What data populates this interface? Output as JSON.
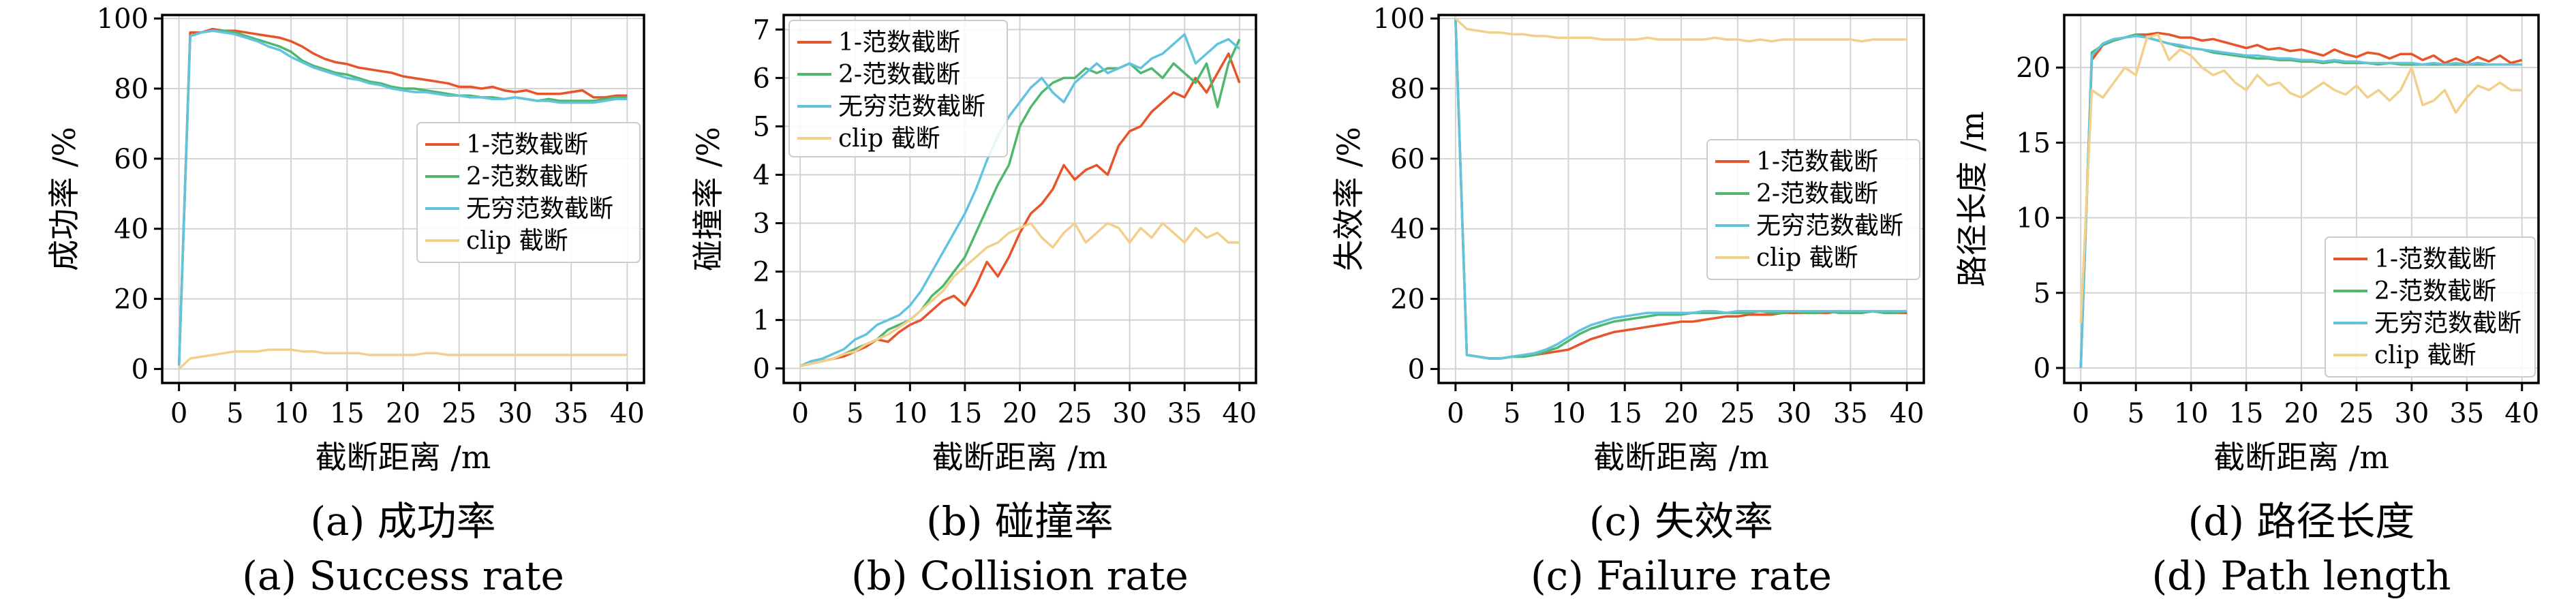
{
  "colors": {
    "norm1": "#e8542a",
    "norm2": "#4fb86f",
    "inf": "#62c3de",
    "clip": "#f2cf8a",
    "grid": "#d3d3d3"
  },
  "chart_data": [
    {
      "type": "line",
      "ylabel": "成功率 /%",
      "xlabel": "截断距离 /m",
      "caption_cn": "(a) 成功率",
      "caption_en": "(a) Success rate",
      "xlim": [
        -1.5,
        41.5
      ],
      "ylim": [
        -4,
        101
      ],
      "xticks": [
        0,
        5,
        10,
        15,
        20,
        25,
        30,
        35,
        40
      ],
      "yticks": [
        0,
        20,
        40,
        60,
        80,
        100
      ],
      "legend": "center-right",
      "x": [
        0,
        1,
        2,
        3,
        4,
        5,
        6,
        7,
        8,
        9,
        10,
        11,
        12,
        13,
        14,
        15,
        16,
        17,
        18,
        19,
        20,
        21,
        22,
        23,
        24,
        25,
        26,
        27,
        28,
        29,
        30,
        31,
        32,
        33,
        34,
        35,
        36,
        37,
        38,
        39,
        40
      ],
      "series": [
        {
          "name": "1-范数截断",
          "color": "#e8542a",
          "values": [
            1,
            96,
            96,
            97,
            96.5,
            96.5,
            96,
            95.5,
            95,
            94.5,
            93.5,
            92,
            90,
            88.5,
            87.5,
            87,
            86,
            85.5,
            85,
            84.5,
            83.5,
            83,
            82.5,
            82,
            81.5,
            80.5,
            80.5,
            80,
            80.5,
            79.5,
            79,
            79.5,
            78.5,
            78.5,
            78.5,
            79,
            79.5,
            77.5,
            77.5,
            78,
            78
          ]
        },
        {
          "name": "2-范数截断",
          "color": "#4fb86f",
          "values": [
            1,
            95,
            96,
            96.5,
            96.5,
            96,
            95,
            94,
            93,
            92,
            90.5,
            88,
            86.5,
            85.5,
            84.5,
            84,
            83,
            82,
            81.5,
            80.5,
            80,
            80,
            79.5,
            79,
            78.5,
            78,
            78,
            77.5,
            77.5,
            77,
            77.5,
            77,
            76.5,
            77,
            76.5,
            76.5,
            76.5,
            76.5,
            77,
            77.5,
            77.5
          ]
        },
        {
          "name": "无穷范数截断",
          "color": "#62c3de",
          "values": [
            1,
            95,
            96,
            96.5,
            96,
            95.5,
            94.5,
            93.5,
            92,
            91,
            89,
            87.5,
            86,
            85,
            84,
            83,
            82.5,
            81.5,
            81,
            80,
            79.5,
            79,
            79,
            78.5,
            78,
            78,
            77.5,
            77.5,
            77,
            77,
            77.5,
            77,
            76.5,
            76.5,
            76,
            76,
            76,
            76,
            76.5,
            77,
            77
          ]
        },
        {
          "name": "clip 截断",
          "color": "#f2cf8a",
          "values": [
            0,
            3,
            3.5,
            4,
            4.5,
            5,
            5,
            5,
            5.5,
            5.5,
            5.5,
            5,
            5,
            4.5,
            4.5,
            4.5,
            4.5,
            4,
            4,
            4,
            4,
            4,
            4.5,
            4.5,
            4,
            4,
            4,
            4,
            4,
            4,
            4,
            4,
            4,
            4,
            4,
            4,
            4,
            4,
            4,
            4,
            4
          ]
        }
      ]
    },
    {
      "type": "line",
      "ylabel": "碰撞率 /%",
      "xlabel": "截断距离 /m",
      "caption_cn": "(b) 碰撞率",
      "caption_en": "(b) Collision rate",
      "xlim": [
        -1.5,
        41.5
      ],
      "ylim": [
        -0.3,
        7.3
      ],
      "xticks": [
        0,
        5,
        10,
        15,
        20,
        25,
        30,
        35,
        40
      ],
      "yticks": [
        0,
        1,
        2,
        3,
        4,
        5,
        6,
        7
      ],
      "legend": "top-left",
      "x": [
        0,
        1,
        2,
        3,
        4,
        5,
        6,
        7,
        8,
        9,
        10,
        11,
        12,
        13,
        14,
        15,
        16,
        17,
        18,
        19,
        20,
        21,
        22,
        23,
        24,
        25,
        26,
        27,
        28,
        29,
        30,
        31,
        32,
        33,
        34,
        35,
        36,
        37,
        38,
        39,
        40
      ],
      "series": [
        {
          "name": "1-范数截断",
          "color": "#e8542a",
          "values": [
            0.05,
            0.1,
            0.15,
            0.2,
            0.25,
            0.35,
            0.45,
            0.6,
            0.55,
            0.75,
            0.9,
            1.0,
            1.2,
            1.4,
            1.5,
            1.3,
            1.7,
            2.2,
            1.9,
            2.3,
            2.8,
            3.2,
            3.4,
            3.7,
            4.2,
            3.9,
            4.1,
            4.2,
            4.0,
            4.6,
            4.9,
            5.0,
            5.3,
            5.5,
            5.7,
            5.6,
            6.0,
            5.7,
            6.1,
            6.5,
            5.9
          ]
        },
        {
          "name": "2-范数截断",
          "color": "#4fb86f",
          "values": [
            0.05,
            0.1,
            0.15,
            0.2,
            0.3,
            0.4,
            0.5,
            0.6,
            0.8,
            0.9,
            1.0,
            1.2,
            1.5,
            1.7,
            2.0,
            2.3,
            2.8,
            3.3,
            3.8,
            4.2,
            5.0,
            5.4,
            5.7,
            5.9,
            6.0,
            6.0,
            6.2,
            6.1,
            6.2,
            6.2,
            6.3,
            6.1,
            6.2,
            6.0,
            6.3,
            6.1,
            5.9,
            6.3,
            5.4,
            6.3,
            6.8
          ]
        },
        {
          "name": "无穷范数截断",
          "color": "#62c3de",
          "values": [
            0.05,
            0.15,
            0.2,
            0.3,
            0.4,
            0.6,
            0.7,
            0.9,
            1.0,
            1.1,
            1.3,
            1.6,
            2.0,
            2.4,
            2.8,
            3.2,
            3.7,
            4.3,
            4.8,
            5.2,
            5.5,
            5.8,
            6.0,
            5.7,
            5.5,
            5.9,
            6.1,
            6.3,
            6.1,
            6.2,
            6.3,
            6.2,
            6.4,
            6.5,
            6.7,
            6.9,
            6.3,
            6.5,
            6.7,
            6.8,
            6.6
          ]
        },
        {
          "name": "clip 截断",
          "color": "#f2cf8a",
          "values": [
            0.05,
            0.1,
            0.15,
            0.2,
            0.3,
            0.35,
            0.5,
            0.6,
            0.7,
            0.85,
            1.0,
            1.2,
            1.4,
            1.6,
            1.9,
            2.1,
            2.3,
            2.5,
            2.6,
            2.8,
            2.9,
            3.0,
            2.7,
            2.5,
            2.8,
            3.0,
            2.6,
            2.8,
            3.0,
            2.9,
            2.6,
            2.9,
            2.7,
            3.0,
            2.8,
            2.6,
            2.9,
            2.7,
            2.8,
            2.6,
            2.6
          ]
        }
      ]
    },
    {
      "type": "line",
      "ylabel": "失效率 /%",
      "xlabel": "截断距离 /m",
      "caption_cn": "(c) 失效率",
      "caption_en": "(c) Failure rate",
      "xlim": [
        -1.5,
        41.5
      ],
      "ylim": [
        -4,
        101
      ],
      "xticks": [
        0,
        5,
        10,
        15,
        20,
        25,
        30,
        35,
        40
      ],
      "yticks": [
        0,
        20,
        40,
        60,
        80,
        100
      ],
      "legend": "center-right",
      "x": [
        0,
        1,
        2,
        3,
        4,
        5,
        6,
        7,
        8,
        9,
        10,
        11,
        12,
        13,
        14,
        15,
        16,
        17,
        18,
        19,
        20,
        21,
        22,
        23,
        24,
        25,
        26,
        27,
        28,
        29,
        30,
        31,
        32,
        33,
        34,
        35,
        36,
        37,
        38,
        39,
        40
      ],
      "series": [
        {
          "name": "1-范数截断",
          "color": "#e8542a",
          "values": [
            100,
            4,
            3.5,
            3,
            3,
            3.5,
            3.5,
            4,
            4.5,
            5,
            5.5,
            7,
            8.5,
            9.5,
            10.5,
            11,
            11.5,
            12,
            12.5,
            13,
            13.5,
            13.5,
            14,
            14.5,
            15,
            15,
            15.5,
            15.5,
            15.5,
            16,
            16,
            16,
            16,
            16,
            16.5,
            16,
            16,
            16.5,
            16,
            16,
            16
          ]
        },
        {
          "name": "2-范数截断",
          "color": "#4fb86f",
          "values": [
            100,
            4,
            3.5,
            3,
            3,
            3.5,
            3.5,
            4,
            5,
            6,
            8,
            10,
            11.5,
            12.5,
            13.5,
            14,
            14.5,
            15,
            15.5,
            15.5,
            15.5,
            16,
            16,
            16,
            16,
            16,
            16,
            16.5,
            16,
            16,
            16.5,
            16,
            16,
            16.5,
            16,
            16,
            16,
            16.5,
            16,
            16,
            16.5
          ]
        },
        {
          "name": "无穷范数截断",
          "color": "#62c3de",
          "values": [
            100,
            4,
            3.5,
            3,
            3,
            3.5,
            4,
            4.5,
            5.5,
            7,
            9,
            11,
            12.5,
            13.5,
            14.5,
            15,
            15.5,
            16,
            16,
            16,
            16,
            16,
            16.5,
            16.5,
            16,
            16.5,
            16.5,
            16.5,
            16.5,
            16.5,
            16.5,
            16.5,
            16.5,
            16.5,
            16.5,
            16.5,
            16.5,
            16.5,
            16.5,
            16.5,
            16.5
          ]
        },
        {
          "name": "clip 截断",
          "color": "#f2cf8a",
          "values": [
            100,
            97,
            96.5,
            96,
            96,
            95.5,
            95.5,
            95,
            95,
            94.5,
            94.5,
            94.5,
            94.5,
            94,
            94,
            94,
            94,
            94.5,
            94,
            94,
            94,
            94,
            94,
            94.5,
            94,
            94,
            93.5,
            94,
            93.5,
            94,
            94,
            94,
            94,
            94,
            94,
            94,
            93.5,
            94,
            94,
            94,
            94
          ]
        }
      ]
    },
    {
      "type": "line",
      "ylabel": "路径长度 /m",
      "xlabel": "截断距离 /m",
      "caption_cn": "(d) 路径长度",
      "caption_en": "(d) Path length",
      "xlim": [
        -1.5,
        41.5
      ],
      "ylim": [
        -1,
        23.5
      ],
      "xticks": [
        0,
        5,
        10,
        15,
        20,
        25,
        30,
        35,
        40
      ],
      "yticks": [
        0,
        5,
        10,
        15,
        20
      ],
      "legend": "bottom-right",
      "x": [
        0,
        1,
        2,
        3,
        4,
        5,
        6,
        7,
        8,
        9,
        10,
        11,
        12,
        13,
        14,
        15,
        16,
        17,
        18,
        19,
        20,
        21,
        22,
        23,
        24,
        25,
        26,
        27,
        28,
        29,
        30,
        31,
        32,
        33,
        34,
        35,
        36,
        37,
        38,
        39,
        40
      ],
      "series": [
        {
          "name": "1-范数截断",
          "color": "#e8542a",
          "values": [
            0,
            20.5,
            21.5,
            21.8,
            22,
            22.2,
            22.2,
            22.3,
            22.2,
            22,
            22,
            21.8,
            21.9,
            21.7,
            21.5,
            21.3,
            21.5,
            21.2,
            21.3,
            21.1,
            21.2,
            21.0,
            20.8,
            21.2,
            20.9,
            20.7,
            21.0,
            20.9,
            20.6,
            20.9,
            20.9,
            20.5,
            20.8,
            20.3,
            20.6,
            20.3,
            20.7,
            20.4,
            20.8,
            20.3,
            20.5
          ]
        },
        {
          "name": "2-范数截断",
          "color": "#4fb86f",
          "values": [
            0,
            21.0,
            21.5,
            21.8,
            22.0,
            22.2,
            22.0,
            21.8,
            21.6,
            21.4,
            21.3,
            21.2,
            21.0,
            20.9,
            20.8,
            20.7,
            20.6,
            20.6,
            20.5,
            20.5,
            20.4,
            20.4,
            20.3,
            20.4,
            20.3,
            20.3,
            20.3,
            20.2,
            20.3,
            20.2,
            20.2,
            20.2,
            20.2,
            20.2,
            20.2,
            20.2,
            20.2,
            20.2,
            20.2,
            20.2,
            20.2
          ]
        },
        {
          "name": "无穷范数截断",
          "color": "#62c3de",
          "values": [
            0,
            20.8,
            21.6,
            21.9,
            22.0,
            22.1,
            22.0,
            21.8,
            21.6,
            21.5,
            21.3,
            21.2,
            21.1,
            21.0,
            20.9,
            20.8,
            20.8,
            20.7,
            20.6,
            20.6,
            20.5,
            20.5,
            20.4,
            20.5,
            20.4,
            20.4,
            20.3,
            20.3,
            20.3,
            20.3,
            20.3,
            20.2,
            20.3,
            20.2,
            20.3,
            20.2,
            20.3,
            20.2,
            20.2,
            20.2,
            20.2
          ]
        },
        {
          "name": "clip 截断",
          "color": "#f2cf8a",
          "values": [
            3,
            18.5,
            18,
            19,
            20,
            19.5,
            22,
            22.2,
            20.5,
            21.2,
            20.8,
            20.0,
            19.5,
            19.8,
            19.0,
            18.5,
            19.5,
            18.8,
            19.0,
            18.3,
            18.0,
            18.5,
            19.0,
            18.5,
            18.2,
            18.8,
            18.0,
            18.5,
            17.8,
            18.5,
            20.0,
            17.5,
            17.8,
            18.5,
            17.0,
            18.0,
            18.8,
            18.5,
            19.0,
            18.5,
            18.5
          ]
        }
      ]
    }
  ]
}
